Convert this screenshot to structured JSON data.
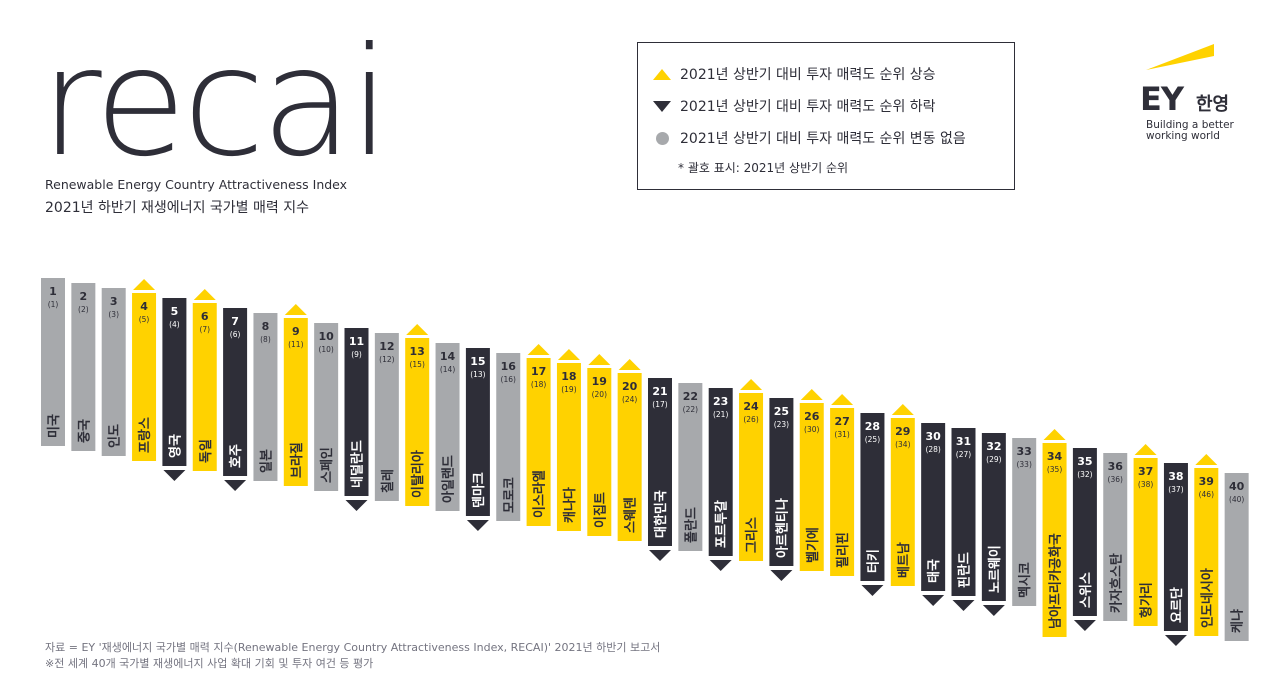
{
  "header": {
    "logo_text": "recai",
    "subtitle_en": "Renewable Energy Country Attractiveness Index",
    "subtitle_ko": "2021년 하반기 재생에너지 국가별 매력 지수"
  },
  "legend": {
    "up": "2021년 상반기 대비 투자 매력도 순위 상승",
    "down": "2021년 상반기 대비 투자 매력도 순위 하락",
    "same": "2021년 상반기 대비 투자 매력도 순위 변동 없음",
    "note": "* 괄호 표시: 2021년 상반기 순위"
  },
  "brand": {
    "mark": "EY",
    "korean": "한영",
    "tagline_1": "Building a better",
    "tagline_2": "working world"
  },
  "colors": {
    "up": "#ffd200",
    "down": "#2e2e38",
    "same": "#a7a9ac",
    "up_text": "#2e2e38",
    "down_text": "#ffffff",
    "same_text": "#2e2e38"
  },
  "footer": {
    "source": "자료 = EY '재생에너지 국가별 매력 지수(Renewable Energy Country Attractiveness Index, RECAI)' 2021년 하반기 보고서",
    "note": "※전 세계 40개 국가별 재생에너지 사업 확대 기회 및 투자 여건 등 평가"
  },
  "chart_data": {
    "type": "bar",
    "title": "2021년 하반기 재생에너지 국가별 매력 지수",
    "categories": [
      "미국",
      "중국",
      "인도",
      "프랑스",
      "영국",
      "독일",
      "호주",
      "일본",
      "브라질",
      "스페인",
      "네덜란드",
      "칠레",
      "이탈리아",
      "아일랜드",
      "덴마크",
      "모로코",
      "이스라엘",
      "캐나다",
      "이집트",
      "스웨덴",
      "대한민국",
      "폴란드",
      "포르투갈",
      "그리스",
      "아르헨티나",
      "벨기에",
      "필리핀",
      "터키",
      "베트남",
      "태국",
      "핀란드",
      "노르웨이",
      "멕시코",
      "남아프리카공화국",
      "스위스",
      "카자흐스탄",
      "헝가리",
      "요르단",
      "인도네시아",
      "케냐"
    ],
    "rank_2021_h2": [
      1,
      2,
      3,
      4,
      5,
      6,
      7,
      8,
      9,
      10,
      11,
      12,
      13,
      14,
      15,
      16,
      17,
      18,
      19,
      20,
      21,
      22,
      23,
      24,
      25,
      26,
      27,
      28,
      29,
      30,
      31,
      32,
      33,
      34,
      35,
      36,
      37,
      38,
      39,
      40
    ],
    "rank_2021_h1": [
      "(1)",
      "(2)",
      "(3)",
      "(5)",
      "(4)",
      "(7)",
      "(6)",
      "(8)",
      "(11)",
      "(10)",
      "(9)",
      "(12)",
      "(15)",
      "(14)",
      "(13)",
      "(16)",
      "(18)",
      "(19)",
      "(20)",
      "(24)",
      "(17)",
      "(22)",
      "(21)",
      "(26)",
      "(23)",
      "(30)",
      "(31)",
      "(25)",
      "(34)",
      "(28)",
      "(27)",
      "(29)",
      "(33)",
      "(35)",
      "(32)",
      "(36)",
      "(38)",
      "(37)",
      "(46)",
      "(40)"
    ],
    "change": [
      "same",
      "same",
      "same",
      "up",
      "down",
      "up",
      "down",
      "same",
      "up",
      "same",
      "down",
      "same",
      "up",
      "same",
      "down",
      "same",
      "up",
      "up",
      "up",
      "up",
      "down",
      "same",
      "down",
      "up",
      "down",
      "up",
      "up",
      "down",
      "up",
      "down",
      "down",
      "down",
      "same",
      "up",
      "down",
      "same",
      "up",
      "down",
      "up",
      "same"
    ]
  }
}
